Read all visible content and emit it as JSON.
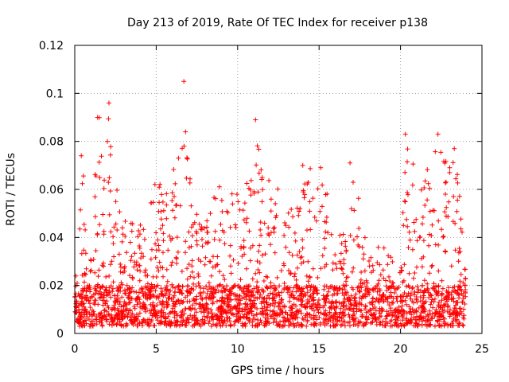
{
  "chart_data": {
    "type": "scatter",
    "title": "Day 213 of 2019, Rate Of TEC Index for receiver p138",
    "xlabel": "GPS time / hours",
    "ylabel": "ROTI / TECUs",
    "xlim": [
      0,
      25
    ],
    "ylim": [
      0,
      0.12
    ],
    "xticks": [
      0,
      5,
      10,
      15,
      20,
      25
    ],
    "xtick_labels": [
      "0",
      "5",
      "10",
      "15",
      "20",
      "25"
    ],
    "yticks": [
      0,
      0.02,
      0.04,
      0.06,
      0.08,
      0.1,
      0.12
    ],
    "ytick_labels": [
      "0",
      "0.02",
      "0.04",
      "0.06",
      "0.08",
      "0.1",
      "0.12"
    ],
    "grid": true,
    "marker": "+",
    "color": "#ff0000",
    "series": [
      {
        "name": "ROTI",
        "x_range": [
          0,
          24
        ],
        "baseline_roti": [
          0.003,
          0.02
        ],
        "notable_points": [
          {
            "x": 6.7,
            "y": 0.105
          },
          {
            "x": 2.1,
            "y": 0.096
          },
          {
            "x": 1.4,
            "y": 0.09
          },
          {
            "x": 11.1,
            "y": 0.089
          },
          {
            "x": 6.8,
            "y": 0.084
          },
          {
            "x": 22.3,
            "y": 0.083
          },
          {
            "x": 20.3,
            "y": 0.083
          },
          {
            "x": 2.0,
            "y": 0.08
          },
          {
            "x": 23.3,
            "y": 0.077
          },
          {
            "x": 0.4,
            "y": 0.074
          },
          {
            "x": 16.9,
            "y": 0.071
          },
          {
            "x": 14.0,
            "y": 0.07
          },
          {
            "x": 15.1,
            "y": 0.069
          }
        ],
        "activity_envelope": [
          {
            "x": 0.0,
            "y": 0.025
          },
          {
            "x": 0.3,
            "y": 0.05
          },
          {
            "x": 0.5,
            "y": 0.07
          },
          {
            "x": 1.0,
            "y": 0.05
          },
          {
            "x": 1.5,
            "y": 0.09
          },
          {
            "x": 2.1,
            "y": 0.096
          },
          {
            "x": 2.6,
            "y": 0.06
          },
          {
            "x": 3.2,
            "y": 0.05
          },
          {
            "x": 4.0,
            "y": 0.045
          },
          {
            "x": 5.0,
            "y": 0.065
          },
          {
            "x": 5.7,
            "y": 0.06
          },
          {
            "x": 6.7,
            "y": 0.085
          },
          {
            "x": 7.2,
            "y": 0.06
          },
          {
            "x": 8.0,
            "y": 0.05
          },
          {
            "x": 8.6,
            "y": 0.06
          },
          {
            "x": 9.1,
            "y": 0.069
          },
          {
            "x": 9.8,
            "y": 0.06
          },
          {
            "x": 10.3,
            "y": 0.055
          },
          {
            "x": 11.1,
            "y": 0.089
          },
          {
            "x": 11.8,
            "y": 0.065
          },
          {
            "x": 12.5,
            "y": 0.06
          },
          {
            "x": 13.2,
            "y": 0.05
          },
          {
            "x": 14.0,
            "y": 0.07
          },
          {
            "x": 15.0,
            "y": 0.069
          },
          {
            "x": 15.7,
            "y": 0.055
          },
          {
            "x": 16.2,
            "y": 0.045
          },
          {
            "x": 16.7,
            "y": 0.04
          },
          {
            "x": 17.2,
            "y": 0.07
          },
          {
            "x": 17.7,
            "y": 0.04
          },
          {
            "x": 18.5,
            "y": 0.04
          },
          {
            "x": 19.3,
            "y": 0.035
          },
          {
            "x": 19.9,
            "y": 0.02
          },
          {
            "x": 20.3,
            "y": 0.083
          },
          {
            "x": 21.0,
            "y": 0.065
          },
          {
            "x": 21.6,
            "y": 0.07
          },
          {
            "x": 22.3,
            "y": 0.083
          },
          {
            "x": 22.9,
            "y": 0.07
          },
          {
            "x": 23.4,
            "y": 0.077
          },
          {
            "x": 24.0,
            "y": 0.03
          }
        ]
      }
    ]
  }
}
